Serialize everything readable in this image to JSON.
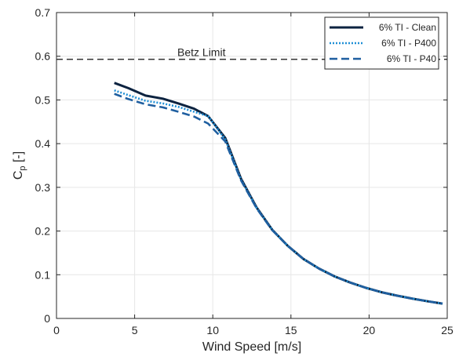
{
  "chart_data": {
    "type": "line",
    "title": "",
    "xlabel": "Wind Speed [m/s]",
    "ylabel_main": "C",
    "ylabel_sub": "p",
    "ylabel_tail": " [-]",
    "xlim": [
      0,
      25
    ],
    "ylim": [
      0,
      0.7
    ],
    "xticks": [
      0,
      5,
      10,
      15,
      20,
      25
    ],
    "yticks": [
      0,
      0.1,
      0.2,
      0.3,
      0.4,
      0.5,
      0.6,
      0.7
    ],
    "xtick_labels": [
      "0",
      "5",
      "10",
      "15",
      "20",
      "25"
    ],
    "ytick_labels": [
      "0",
      "0.1",
      "0.2",
      "0.3",
      "0.4",
      "0.5",
      "0.6",
      "0.7"
    ],
    "grid": true,
    "legend_position": "top-right",
    "reference_line": {
      "label": "Betz Limit",
      "y": 0.593,
      "color": "#333333",
      "style": "dashed"
    },
    "series": [
      {
        "name": "6% TI - Clean",
        "color": "#0c2340",
        "style": "solid",
        "x": [
          3.7,
          4.6,
          5.7,
          6.8,
          7.8,
          8.8,
          9.7,
          10.8,
          11.8,
          12.8,
          13.8,
          14.8,
          15.8,
          16.8,
          17.8,
          18.8,
          19.8,
          20.8,
          21.8,
          22.8,
          23.8,
          24.7
        ],
        "y": [
          0.539,
          0.527,
          0.51,
          0.503,
          0.492,
          0.48,
          0.463,
          0.413,
          0.32,
          0.254,
          0.203,
          0.166,
          0.136,
          0.114,
          0.096,
          0.082,
          0.07,
          0.06,
          0.052,
          0.045,
          0.039,
          0.034
        ]
      },
      {
        "name": "6% TI - P400",
        "color": "#1f8fd6",
        "style": "dotted",
        "x": [
          3.7,
          4.6,
          5.7,
          6.8,
          7.8,
          8.8,
          9.7,
          10.8,
          11.8,
          12.8,
          13.8,
          14.8,
          15.8,
          16.8,
          17.8,
          18.8,
          19.8,
          20.8,
          21.8,
          22.8,
          23.8,
          24.7
        ],
        "y": [
          0.522,
          0.511,
          0.498,
          0.492,
          0.484,
          0.473,
          0.463,
          0.41,
          0.318,
          0.253,
          0.203,
          0.166,
          0.136,
          0.114,
          0.096,
          0.082,
          0.07,
          0.06,
          0.052,
          0.045,
          0.039,
          0.034
        ]
      },
      {
        "name": "6% TI - P40",
        "color": "#1f5fa0",
        "style": "dashed",
        "x": [
          3.7,
          4.6,
          5.7,
          6.8,
          7.8,
          8.8,
          9.7,
          10.8,
          11.8,
          12.8,
          13.8,
          14.8,
          15.8,
          16.8,
          17.8,
          18.8,
          19.8,
          20.8,
          21.8,
          22.8,
          23.8,
          24.7
        ],
        "y": [
          0.514,
          0.502,
          0.49,
          0.483,
          0.473,
          0.462,
          0.446,
          0.405,
          0.316,
          0.252,
          0.202,
          0.166,
          0.136,
          0.114,
          0.096,
          0.082,
          0.07,
          0.06,
          0.052,
          0.045,
          0.039,
          0.034
        ]
      }
    ]
  }
}
